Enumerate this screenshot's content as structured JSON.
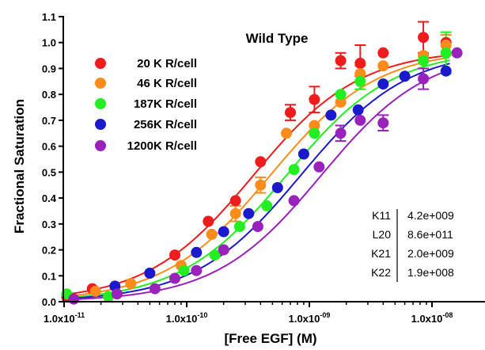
{
  "chart_data": {
    "type": "scatter",
    "title": "Wild Type",
    "xlabel": "[Free EGF] (M)",
    "ylabel": "Fractional Saturation",
    "xscale": "log",
    "xlim": [
      1e-11,
      1.6e-08
    ],
    "ylim": [
      0,
      1.1
    ],
    "x_ticks": [
      {
        "value": 1e-11,
        "mantissa": "1.0x10",
        "exp": "-11"
      },
      {
        "value": 1e-10,
        "mantissa": "1.0x10",
        "exp": "-10"
      },
      {
        "value": 1e-09,
        "mantissa": "1.0x10",
        "exp": "-09"
      },
      {
        "value": 1e-08,
        "mantissa": "1.0x10",
        "exp": "-08"
      }
    ],
    "y_ticks": [
      "0.0",
      "0.1",
      "0.2",
      "0.3",
      "0.4",
      "0.5",
      "0.6",
      "0.7",
      "0.8",
      "0.9",
      "1.0",
      "1.1"
    ],
    "legend_position": "top-left",
    "series": [
      {
        "name": "20 K R/cell",
        "color": "#ee1c1c",
        "ec50": 3.5e-10,
        "points": [
          {
            "x": 1.05e-11,
            "y": 0.02
          },
          {
            "x": 1.7e-11,
            "y": 0.05
          },
          {
            "x": 8e-11,
            "y": 0.18
          },
          {
            "x": 1.5e-10,
            "y": 0.31
          },
          {
            "x": 2.5e-10,
            "y": 0.39
          },
          {
            "x": 4e-10,
            "y": 0.54
          },
          {
            "x": 7e-10,
            "y": 0.73
          },
          {
            "x": 1.1e-09,
            "y": 0.78
          },
          {
            "x": 1.8e-09,
            "y": 0.93
          },
          {
            "x": 2.6e-09,
            "y": 0.92
          },
          {
            "x": 4e-09,
            "y": 0.96
          },
          {
            "x": 8.5e-09,
            "y": 1.02
          },
          {
            "x": 1.3e-08,
            "y": 1.0
          }
        ]
      },
      {
        "name": "46 K R/cell",
        "color": "#ff8c1a",
        "ec50": 4.8e-10,
        "points": [
          {
            "x": 1.8e-11,
            "y": 0.04
          },
          {
            "x": 3.5e-11,
            "y": 0.07
          },
          {
            "x": 9e-11,
            "y": 0.14
          },
          {
            "x": 1.6e-10,
            "y": 0.26
          },
          {
            "x": 2.5e-10,
            "y": 0.34
          },
          {
            "x": 4e-10,
            "y": 0.45
          },
          {
            "x": 6.5e-10,
            "y": 0.65
          },
          {
            "x": 1.1e-09,
            "y": 0.68
          },
          {
            "x": 1.8e-09,
            "y": 0.77
          },
          {
            "x": 2.6e-09,
            "y": 0.88
          },
          {
            "x": 4e-09,
            "y": 0.91
          },
          {
            "x": 8.5e-09,
            "y": 0.95
          },
          {
            "x": 1.3e-08,
            "y": 0.99
          }
        ]
      },
      {
        "name": "187K R/cell",
        "color": "#22ee22",
        "ec50": 6.5e-10,
        "points": [
          {
            "x": 1.05e-11,
            "y": 0.03
          },
          {
            "x": 2.3e-11,
            "y": 0.02
          },
          {
            "x": 9.5e-11,
            "y": 0.12
          },
          {
            "x": 1.7e-10,
            "y": 0.18
          },
          {
            "x": 2.7e-10,
            "y": 0.29
          },
          {
            "x": 4.5e-10,
            "y": 0.37
          },
          {
            "x": 7.5e-10,
            "y": 0.51
          },
          {
            "x": 1.1e-09,
            "y": 0.65
          },
          {
            "x": 1.8e-09,
            "y": 0.8
          },
          {
            "x": 2.6e-09,
            "y": 0.85
          },
          {
            "x": 4e-09,
            "y": 0.84
          },
          {
            "x": 8.5e-09,
            "y": 0.93
          },
          {
            "x": 1.3e-08,
            "y": 0.96
          }
        ]
      },
      {
        "name": "256K R/cell",
        "color": "#1a1acc",
        "ec50": 8.5e-10,
        "points": [
          {
            "x": 2.6e-11,
            "y": 0.06
          },
          {
            "x": 5e-11,
            "y": 0.11
          },
          {
            "x": 1.2e-10,
            "y": 0.19
          },
          {
            "x": 2e-10,
            "y": 0.27
          },
          {
            "x": 3.2e-10,
            "y": 0.34
          },
          {
            "x": 5.5e-10,
            "y": 0.44
          },
          {
            "x": 9e-10,
            "y": 0.57
          },
          {
            "x": 1.5e-09,
            "y": 0.72
          },
          {
            "x": 2.5e-09,
            "y": 0.74
          },
          {
            "x": 4e-09,
            "y": 0.84
          },
          {
            "x": 6e-09,
            "y": 0.87
          },
          {
            "x": 1.3e-08,
            "y": 0.89
          }
        ]
      },
      {
        "name": "1200K R/cell",
        "color": "#9922bb",
        "ec50": 1.25e-09,
        "points": [
          {
            "x": 1.2e-11,
            "y": 0.01
          },
          {
            "x": 2.7e-11,
            "y": 0.03
          },
          {
            "x": 5.5e-11,
            "y": 0.05
          },
          {
            "x": 8e-11,
            "y": 0.09
          },
          {
            "x": 1.2e-10,
            "y": 0.12
          },
          {
            "x": 2e-10,
            "y": 0.2
          },
          {
            "x": 3.8e-10,
            "y": 0.29
          },
          {
            "x": 7.5e-10,
            "y": 0.39
          },
          {
            "x": 1.2e-09,
            "y": 0.52
          },
          {
            "x": 1.8e-09,
            "y": 0.65
          },
          {
            "x": 2.6e-09,
            "y": 0.7
          },
          {
            "x": 4e-09,
            "y": 0.69
          },
          {
            "x": 8.5e-09,
            "y": 0.86
          },
          {
            "x": 1.6e-08,
            "y": 0.96
          }
        ]
      }
    ],
    "error_bars": [
      {
        "series": 0,
        "x": 7e-10,
        "y": 0.73,
        "up": 0.03,
        "down": 0.03
      },
      {
        "series": 0,
        "x": 1.1e-09,
        "y": 0.78,
        "up": 0.05,
        "down": 0.05
      },
      {
        "series": 0,
        "x": 1.8e-09,
        "y": 0.93,
        "up": 0.03,
        "down": 0.03
      },
      {
        "series": 0,
        "x": 2.6e-09,
        "y": 0.92,
        "up": 0.07,
        "down": 0.05
      },
      {
        "series": 0,
        "x": 8.5e-09,
        "y": 1.02,
        "up": 0.06,
        "down": 0.06
      },
      {
        "series": 1,
        "x": 2.5e-10,
        "y": 0.34,
        "up": 0.03,
        "down": 0.03
      },
      {
        "series": 1,
        "x": 4e-10,
        "y": 0.45,
        "up": 0.03,
        "down": 0.03
      },
      {
        "series": 1,
        "x": 2.6e-09,
        "y": 0.88,
        "up": 0.03,
        "down": 0.03
      },
      {
        "series": 1,
        "x": 1.3e-08,
        "y": 0.99,
        "up": 0.04,
        "down": 0.04
      },
      {
        "series": 2,
        "x": 1.3e-08,
        "y": 0.96,
        "up": 0.08,
        "down": 0.08
      },
      {
        "series": 2,
        "x": 2.6e-09,
        "y": 0.85,
        "up": 0.03,
        "down": 0.03
      },
      {
        "series": 4,
        "x": 1.8e-09,
        "y": 0.65,
        "up": 0.03,
        "down": 0.03
      },
      {
        "series": 4,
        "x": 4e-09,
        "y": 0.69,
        "up": 0.03,
        "down": 0.03
      },
      {
        "series": 4,
        "x": 8.5e-09,
        "y": 0.86,
        "up": 0.04,
        "down": 0.04
      }
    ],
    "parameters": [
      {
        "name": "K11",
        "value": "4.2e+009"
      },
      {
        "name": "L20",
        "value": "8.6e+011"
      },
      {
        "name": "K21",
        "value": "2.0e+009"
      },
      {
        "name": "K22",
        "value": "1.9e+008"
      }
    ]
  }
}
